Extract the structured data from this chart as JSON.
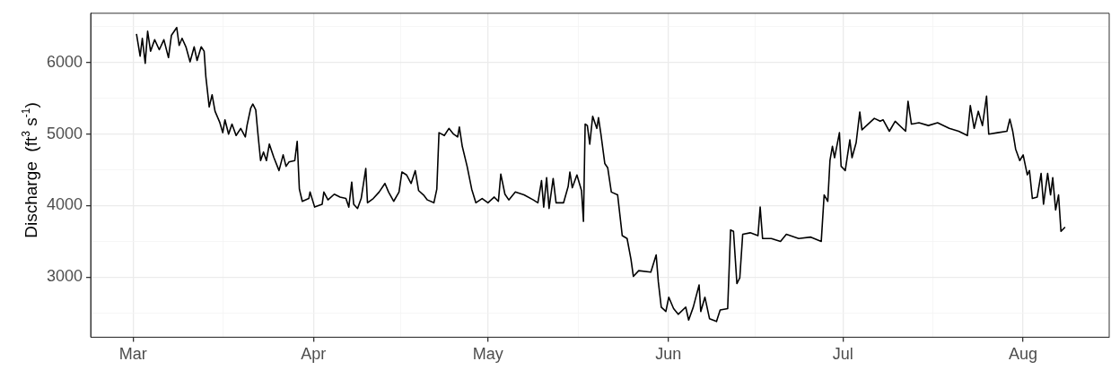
{
  "chart_data": {
    "type": "line",
    "ylabel": "Discharge  (ft$^{3}$ s$^{-1}$)",
    "xlim": [
      "--02-21T17:00",
      "--08-15T19:00"
    ],
    "xticks": [
      {
        "value": "--03-01",
        "label": "Mar"
      },
      {
        "value": "--03-16T12:00",
        "label": null
      },
      {
        "value": "--04-01",
        "label": "Apr"
      },
      {
        "value": "--04-16",
        "label": null
      },
      {
        "value": "--05-01",
        "label": "May"
      },
      {
        "value": "--05-16T12:00",
        "label": null
      },
      {
        "value": "--06-01",
        "label": "Jun"
      },
      {
        "value": "--06-16",
        "label": null
      },
      {
        "value": "--07-01",
        "label": "Jul"
      },
      {
        "value": "--07-16T12:00",
        "label": null
      },
      {
        "value": "--08-01",
        "label": "Aug"
      }
    ],
    "ylim": [
      2160,
      6690
    ],
    "yticks": [
      {
        "value": 2500,
        "label": null
      },
      3000,
      {
        "value": 3500,
        "label": null
      },
      4000,
      {
        "value": 4500,
        "label": null
      },
      5000,
      {
        "value": 5500,
        "label": null
      },
      6000,
      {
        "value": 6500,
        "label": null
      }
    ],
    "grid": true,
    "legend": false,
    "marker": "none",
    "line_style": "solid",
    "series": [
      {
        "color": "#000000",
        "x": [
          "--03-01T14:00",
          "--03-02T05:00",
          "--03-02T14:00",
          "--03-03T02:00",
          "--03-03T12:00",
          "--03-04T00:00",
          "--03-04T17:00",
          "--03-05T12:00",
          "--03-06T07:00",
          "--03-07T02:00",
          "--03-07T14:00",
          "--03-08T12:00",
          "--03-08T22:00",
          "--03-09T10:00",
          "--03-10T02:00",
          "--03-10T19:00",
          "--03-11T12:00",
          "--03-12T00:00",
          "--03-12T17:00",
          "--03-13T05:00",
          "--03-13T12:00",
          "--03-14T02:00",
          "--03-14T14:00",
          "--03-15T02:00",
          "--03-15T22:00",
          "--03-16T10:00",
          "--03-16T19:00",
          "--03-17T10:00",
          "--03-18T00:00",
          "--03-18T17:00",
          "--03-19T12:00",
          "--03-20T07:00",
          "--03-20T14:00",
          "--03-21T05:00",
          "--03-21T14:00",
          "--03-22T02:00",
          "--03-22T10:00",
          "--03-22T22:00",
          "--03-23T10:00",
          "--03-23T22:00",
          "--03-24T10:00",
          "--03-25T05:00",
          "--03-26T02:00",
          "--03-26T19:00",
          "--03-27T07:00",
          "--03-27T19:00",
          "--03-28T19:00",
          "--03-29T05:00",
          "--03-29T14:00",
          "--03-30T02:00",
          "--03-31T05:00",
          "--03-31T10:00",
          "--04-01T05:00",
          "--04-02T12:00",
          "--04-02T19:00",
          "--04-03T12:00",
          "--04-04T14:00",
          "--04-05T14:00",
          "--04-06T14:00",
          "--04-07T02:00",
          "--04-07T14:00",
          "--04-07T22:00",
          "--04-08T14:00",
          "--04-09T05:00",
          "--04-10T00:00",
          "--04-10T07:00",
          "--04-11T07:00",
          "--04-12T07:00",
          "--04-13T07:00",
          "--04-13T22:00",
          "--04-14T19:00",
          "--04-15T17:00",
          "--04-16T05:00",
          "--04-17T00:00",
          "--04-17T19:00",
          "--04-18T12:00",
          "--04-19T02:00",
          "--04-19T22:00",
          "--04-20T14:00",
          "--04-21T17:00",
          "--04-22T05:00",
          "--04-22T14:00",
          "--04-23T12:00",
          "--04-24T07:00",
          "--04-25T02:00",
          "--04-25T19:00",
          "--04-26T02:00",
          "--04-26T14:00",
          "--04-27T10:00",
          "--04-28T05:00",
          "--04-28T22:00",
          "--04-30T00:00",
          "--05-01T00:00",
          "--05-02T02:00",
          "--05-02T19:00",
          "--05-03T05:00",
          "--05-03T22:00",
          "--05-04T14:00",
          "--05-05T17:00",
          "--05-07T05:00",
          "--05-08T19:00",
          "--05-09T14:00",
          "--05-10T05:00",
          "--05-10T14:00",
          "--05-11T02:00",
          "--05-11T12:00",
          "--05-12T05:00",
          "--05-12T17:00",
          "--05-14T00:00",
          "--05-14T19:00",
          "--05-15T02:00",
          "--05-15T12:00",
          "--05-16T07:00",
          "--05-17T02:00",
          "--05-17T10:00",
          "--05-17T17:00",
          "--05-18T02:00",
          "--05-18T12:00",
          "--05-19T00:00",
          "--05-19T17:00",
          "--05-20T00:00",
          "--05-20T10:00",
          "--05-21T02:00",
          "--05-21T14:00",
          "--05-22T05:00",
          "--05-23T07:00",
          "--05-24T02:00",
          "--05-24T22:00",
          "--05-25T14:00",
          "--05-26T00:00",
          "--05-26T22:00",
          "--05-29T00:00",
          "--05-29T22:00",
          "--05-30T07:00",
          "--05-30T19:00",
          "--05-31T14:00",
          "--06-01T02:00",
          "--06-01T22:00",
          "--06-02T17:00",
          "--06-04T00:00",
          "--06-04T12:00",
          "--06-05T07:00",
          "--06-06T07:00",
          "--06-06T14:00",
          "--06-07T07:00",
          "--06-08T02:00",
          "--06-09T07:00",
          "--06-09T22:00",
          "--06-11T05:00",
          "--06-11T17:00",
          "--06-12T05:00",
          "--06-12T19:00",
          "--06-13T07:00",
          "--06-13T19:00",
          "--06-15T02:00",
          "--06-16T10:00",
          "--06-16T19:00",
          "--06-17T05:00",
          "--06-18T17:00",
          "--06-20T07:00",
          "--06-21T07:00",
          "--06-23T10:00",
          "--06-25T12:00",
          "--06-27T07:00",
          "--06-27T19:00",
          "--06-28T10:00",
          "--06-28T19:00",
          "--06-29T05:00",
          "--06-29T14:00",
          "--06-30T10:00",
          "--06-30T17:00",
          "--07-01T10:00",
          "--07-02T05:00",
          "--07-02T14:00",
          "--07-03T07:00",
          "--07-03T22:00",
          "--07-04T07:00",
          "--07-05T02:00",
          "--07-06T10:00",
          "--07-07T10:00",
          "--07-07T22:00",
          "--07-09T00:00",
          "--07-10T00:00",
          "--07-11T19:00",
          "--07-12T05:00",
          "--07-12T19:00",
          "--07-14T02:00",
          "--07-15T17:00",
          "--07-17T07:00",
          "--07-19T07:00",
          "--07-20T22:00",
          "--07-22T10:00",
          "--07-22T22:00",
          "--07-23T14:00",
          "--07-24T07:00",
          "--07-25T00:00",
          "--07-25T17:00",
          "--07-26T02:00",
          "--07-27T14:00",
          "--07-29T05:00",
          "--07-29T17:00",
          "--07-30T05:00",
          "--07-30T17:00",
          "--07-31T10:00",
          "--08-01T00:00",
          "--08-01T17:00",
          "--08-02T02:00",
          "--08-02T14:00",
          "--08-03T10:00",
          "--08-04T02:00",
          "--08-04T12:00",
          "--08-05T05:00",
          "--08-05T17:00",
          "--08-06T02:00",
          "--08-06T14:00",
          "--08-07T02:00",
          "--08-07T12:00",
          "--08-08T05:00"
        ],
        "values": [
          6400,
          6090,
          6340,
          5990,
          6440,
          6160,
          6320,
          6180,
          6320,
          6070,
          6380,
          6490,
          6240,
          6340,
          6220,
          6010,
          6220,
          6030,
          6220,
          6160,
          5810,
          5380,
          5550,
          5320,
          5160,
          5020,
          5200,
          5000,
          5140,
          4980,
          5080,
          4960,
          5120,
          5360,
          5420,
          5340,
          5040,
          4630,
          4750,
          4630,
          4860,
          4670,
          4490,
          4710,
          4550,
          4610,
          4630,
          4900,
          4230,
          4060,
          4100,
          4190,
          3980,
          4020,
          4190,
          4080,
          4160,
          4120,
          4100,
          3980,
          4330,
          4020,
          3960,
          4100,
          4520,
          4040,
          4100,
          4190,
          4310,
          4190,
          4060,
          4190,
          4470,
          4430,
          4310,
          4490,
          4210,
          4150,
          4080,
          4040,
          4230,
          5020,
          4980,
          5080,
          5000,
          4960,
          5100,
          4830,
          4550,
          4230,
          4040,
          4100,
          4040,
          4120,
          4060,
          4440,
          4160,
          4080,
          4190,
          4150,
          4080,
          4040,
          4350,
          3980,
          4390,
          3960,
          4380,
          4040,
          4040,
          4270,
          4470,
          4250,
          4430,
          4210,
          3780,
          5140,
          5120,
          4860,
          5250,
          5080,
          5230,
          5000,
          4590,
          4530,
          4190,
          4150,
          3580,
          3540,
          3250,
          3010,
          3090,
          3070,
          3310,
          2930,
          2580,
          2520,
          2720,
          2560,
          2480,
          2580,
          2400,
          2580,
          2890,
          2520,
          2720,
          2420,
          2380,
          2540,
          2560,
          3660,
          3640,
          2910,
          2990,
          3600,
          3620,
          3580,
          3980,
          3540,
          3540,
          3500,
          3600,
          3540,
          3560,
          3500,
          4150,
          4060,
          4630,
          4830,
          4670,
          5020,
          4550,
          4490,
          4920,
          4670,
          4880,
          5310,
          5060,
          5120,
          5220,
          5180,
          5200,
          5040,
          5180,
          5040,
          5460,
          5140,
          5160,
          5120,
          5160,
          5080,
          5040,
          4980,
          5400,
          5080,
          5320,
          5120,
          5530,
          5000,
          5020,
          5040,
          5210,
          5040,
          4790,
          4630,
          4710,
          4430,
          4490,
          4100,
          4120,
          4450,
          4020,
          4450,
          4150,
          4390,
          3940,
          4150,
          3640,
          3700
        ]
      }
    ]
  }
}
